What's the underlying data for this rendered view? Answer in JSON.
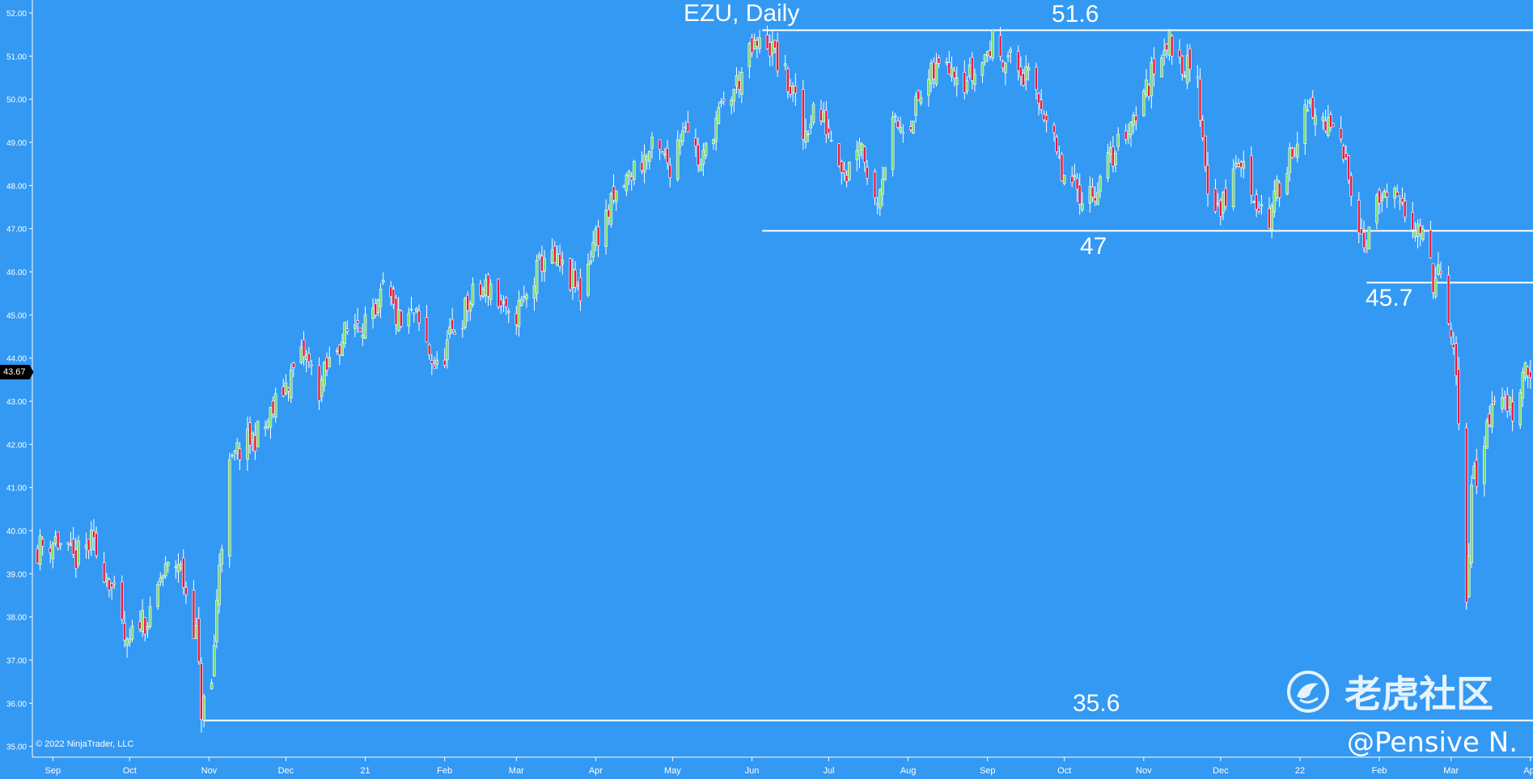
{
  "page": {
    "title": "EZU, Daily",
    "copyright": "© 2022 NinjaTrader, LLC",
    "watermark_text": "老虎社区",
    "watermark_icon": "tiger-community-logo-icon",
    "signature": "@Pensive N.",
    "colors": {
      "background": "#3399f3",
      "up": "#7ddc6c",
      "down": "#e41a3c",
      "wick": "#ffffff",
      "lines": "#ffffff"
    }
  },
  "price_tag": {
    "value": "43.67"
  },
  "chart_data": {
    "type": "candlestick",
    "title": "EZU, Daily",
    "ylim": [
      34.75,
      52.3
    ],
    "yticks": [
      "35.00",
      "36.00",
      "37.00",
      "38.00",
      "39.00",
      "40.00",
      "41.00",
      "42.00",
      "43.00",
      "44.00",
      "45.00",
      "46.00",
      "47.00",
      "48.00",
      "49.00",
      "50.00",
      "51.00",
      "52.00"
    ],
    "xlim": [
      "2020-08-24",
      "2022-04-02"
    ],
    "xticks": [
      {
        "date": "2020-09-01",
        "label": "Sep"
      },
      {
        "date": "2020-10-01",
        "label": "Oct"
      },
      {
        "date": "2020-11-01",
        "label": "Nov"
      },
      {
        "date": "2020-12-01",
        "label": "Dec"
      },
      {
        "date": "2021-01-01",
        "label": "21"
      },
      {
        "date": "2021-02-01",
        "label": "Feb"
      },
      {
        "date": "2021-03-01",
        "label": "Mar"
      },
      {
        "date": "2021-04-01",
        "label": "Apr"
      },
      {
        "date": "2021-05-01",
        "label": "May"
      },
      {
        "date": "2021-06-01",
        "label": "Jun"
      },
      {
        "date": "2021-07-01",
        "label": "Jul"
      },
      {
        "date": "2021-08-01",
        "label": "Aug"
      },
      {
        "date": "2021-09-01",
        "label": "Sep"
      },
      {
        "date": "2021-10-01",
        "label": "Oct"
      },
      {
        "date": "2021-11-01",
        "label": "Nov"
      },
      {
        "date": "2021-12-01",
        "label": "Dec"
      },
      {
        "date": "2022-01-01",
        "label": "22"
      },
      {
        "date": "2022-02-01",
        "label": "Feb"
      },
      {
        "date": "2022-03-01",
        "label": "Mar"
      },
      {
        "date": "2022-04-01",
        "label": "Apr"
      }
    ],
    "levels": [
      {
        "label": "51.6",
        "value": 51.6,
        "from": "2021-06-05"
      },
      {
        "label": "47",
        "value": 46.95,
        "from": "2021-06-05"
      },
      {
        "label": "45.7",
        "value": 45.75,
        "from": "2022-01-27"
      },
      {
        "label": "35.6",
        "value": 35.6,
        "from": "2020-10-30"
      }
    ],
    "last_price": 43.67,
    "anchors": [
      [
        "2020-08-26",
        39.6
      ],
      [
        "2020-09-02",
        39.8
      ],
      [
        "2020-09-09",
        39.3
      ],
      [
        "2020-09-16",
        39.7
      ],
      [
        "2020-09-23",
        38.9
      ],
      [
        "2020-09-30",
        37.2
      ],
      [
        "2020-10-05",
        38.0
      ],
      [
        "2020-10-09",
        37.9
      ],
      [
        "2020-10-13",
        38.9
      ],
      [
        "2020-10-20",
        39.3
      ],
      [
        "2020-10-27",
        37.6
      ],
      [
        "2020-10-29",
        35.85
      ],
      [
        "2020-11-02",
        36.4
      ],
      [
        "2020-11-05",
        39.3
      ],
      [
        "2020-11-09",
        41.4
      ],
      [
        "2020-11-12",
        41.8
      ],
      [
        "2020-11-23",
        42.4
      ],
      [
        "2020-12-01",
        43.4
      ],
      [
        "2020-12-08",
        44.1
      ],
      [
        "2020-12-14",
        43.3
      ],
      [
        "2020-12-21",
        44.3
      ],
      [
        "2020-12-29",
        44.9
      ],
      [
        "2021-01-05",
        44.8
      ],
      [
        "2021-01-08",
        45.6
      ],
      [
        "2021-01-15",
        44.7
      ],
      [
        "2021-01-20",
        45.0
      ],
      [
        "2021-01-29",
        43.7
      ],
      [
        "2021-02-05",
        44.7
      ],
      [
        "2021-02-12",
        45.4
      ],
      [
        "2021-02-19",
        45.7
      ],
      [
        "2021-02-26",
        44.8
      ],
      [
        "2021-03-05",
        45.4
      ],
      [
        "2021-03-12",
        46.4
      ],
      [
        "2021-03-19",
        46.0
      ],
      [
        "2021-03-26",
        45.5
      ],
      [
        "2021-03-31",
        46.7
      ],
      [
        "2021-04-09",
        47.7
      ],
      [
        "2021-04-16",
        48.4
      ],
      [
        "2021-04-23",
        48.8
      ],
      [
        "2021-04-30",
        48.5
      ],
      [
        "2021-05-06",
        49.6
      ],
      [
        "2021-05-12",
        48.4
      ],
      [
        "2021-05-17",
        49.4
      ],
      [
        "2021-05-24",
        50.1
      ],
      [
        "2021-06-01",
        51.1
      ],
      [
        "2021-06-07",
        51.35
      ],
      [
        "2021-06-10",
        51.0
      ],
      [
        "2021-06-17",
        50.1
      ],
      [
        "2021-06-21",
        49.1
      ],
      [
        "2021-06-25",
        49.8
      ],
      [
        "2021-07-01",
        49.3
      ],
      [
        "2021-07-08",
        48.3
      ],
      [
        "2021-07-13",
        49.2
      ],
      [
        "2021-07-19",
        47.6
      ],
      [
        "2021-07-26",
        49.3
      ],
      [
        "2021-08-02",
        49.6
      ],
      [
        "2021-08-09",
        50.4
      ],
      [
        "2021-08-16",
        51.0
      ],
      [
        "2021-08-23",
        50.5
      ],
      [
        "2021-08-27",
        50.6
      ],
      [
        "2021-09-03",
        51.3
      ],
      [
        "2021-09-10",
        50.9
      ],
      [
        "2021-09-17",
        50.4
      ],
      [
        "2021-09-23",
        49.8
      ],
      [
        "2021-09-30",
        48.2
      ],
      [
        "2021-10-05",
        47.9
      ],
      [
        "2021-10-12",
        47.8
      ],
      [
        "2021-10-19",
        48.6
      ],
      [
        "2021-10-26",
        49.4
      ],
      [
        "2021-11-02",
        50.2
      ],
      [
        "2021-11-09",
        51.4
      ],
      [
        "2021-11-16",
        50.9
      ],
      [
        "2021-11-22",
        50.3
      ],
      [
        "2021-11-26",
        48.0
      ],
      [
        "2021-12-01",
        47.4
      ],
      [
        "2021-12-08",
        48.6
      ],
      [
        "2021-12-14",
        47.8
      ],
      [
        "2021-12-20",
        47.2
      ],
      [
        "2021-12-27",
        48.6
      ],
      [
        "2022-01-04",
        49.7
      ],
      [
        "2022-01-10",
        49.5
      ],
      [
        "2022-01-14",
        49.2
      ],
      [
        "2022-01-20",
        48.4
      ],
      [
        "2022-01-26",
        46.6
      ],
      [
        "2022-02-01",
        47.7
      ],
      [
        "2022-02-07",
        47.6
      ],
      [
        "2022-02-11",
        47.3
      ],
      [
        "2022-02-16",
        47.2
      ],
      [
        "2022-02-22",
        45.8
      ],
      [
        "2022-02-25",
        45.9
      ],
      [
        "2022-03-03",
        43.6
      ],
      [
        "2022-03-07",
        38.3
      ],
      [
        "2022-03-09",
        41.2
      ],
      [
        "2022-03-11",
        41.3
      ],
      [
        "2022-03-16",
        42.7
      ],
      [
        "2022-03-21",
        43.1
      ],
      [
        "2022-03-25",
        42.8
      ],
      [
        "2022-03-30",
        43.9
      ],
      [
        "2022-04-01",
        43.7
      ]
    ]
  }
}
